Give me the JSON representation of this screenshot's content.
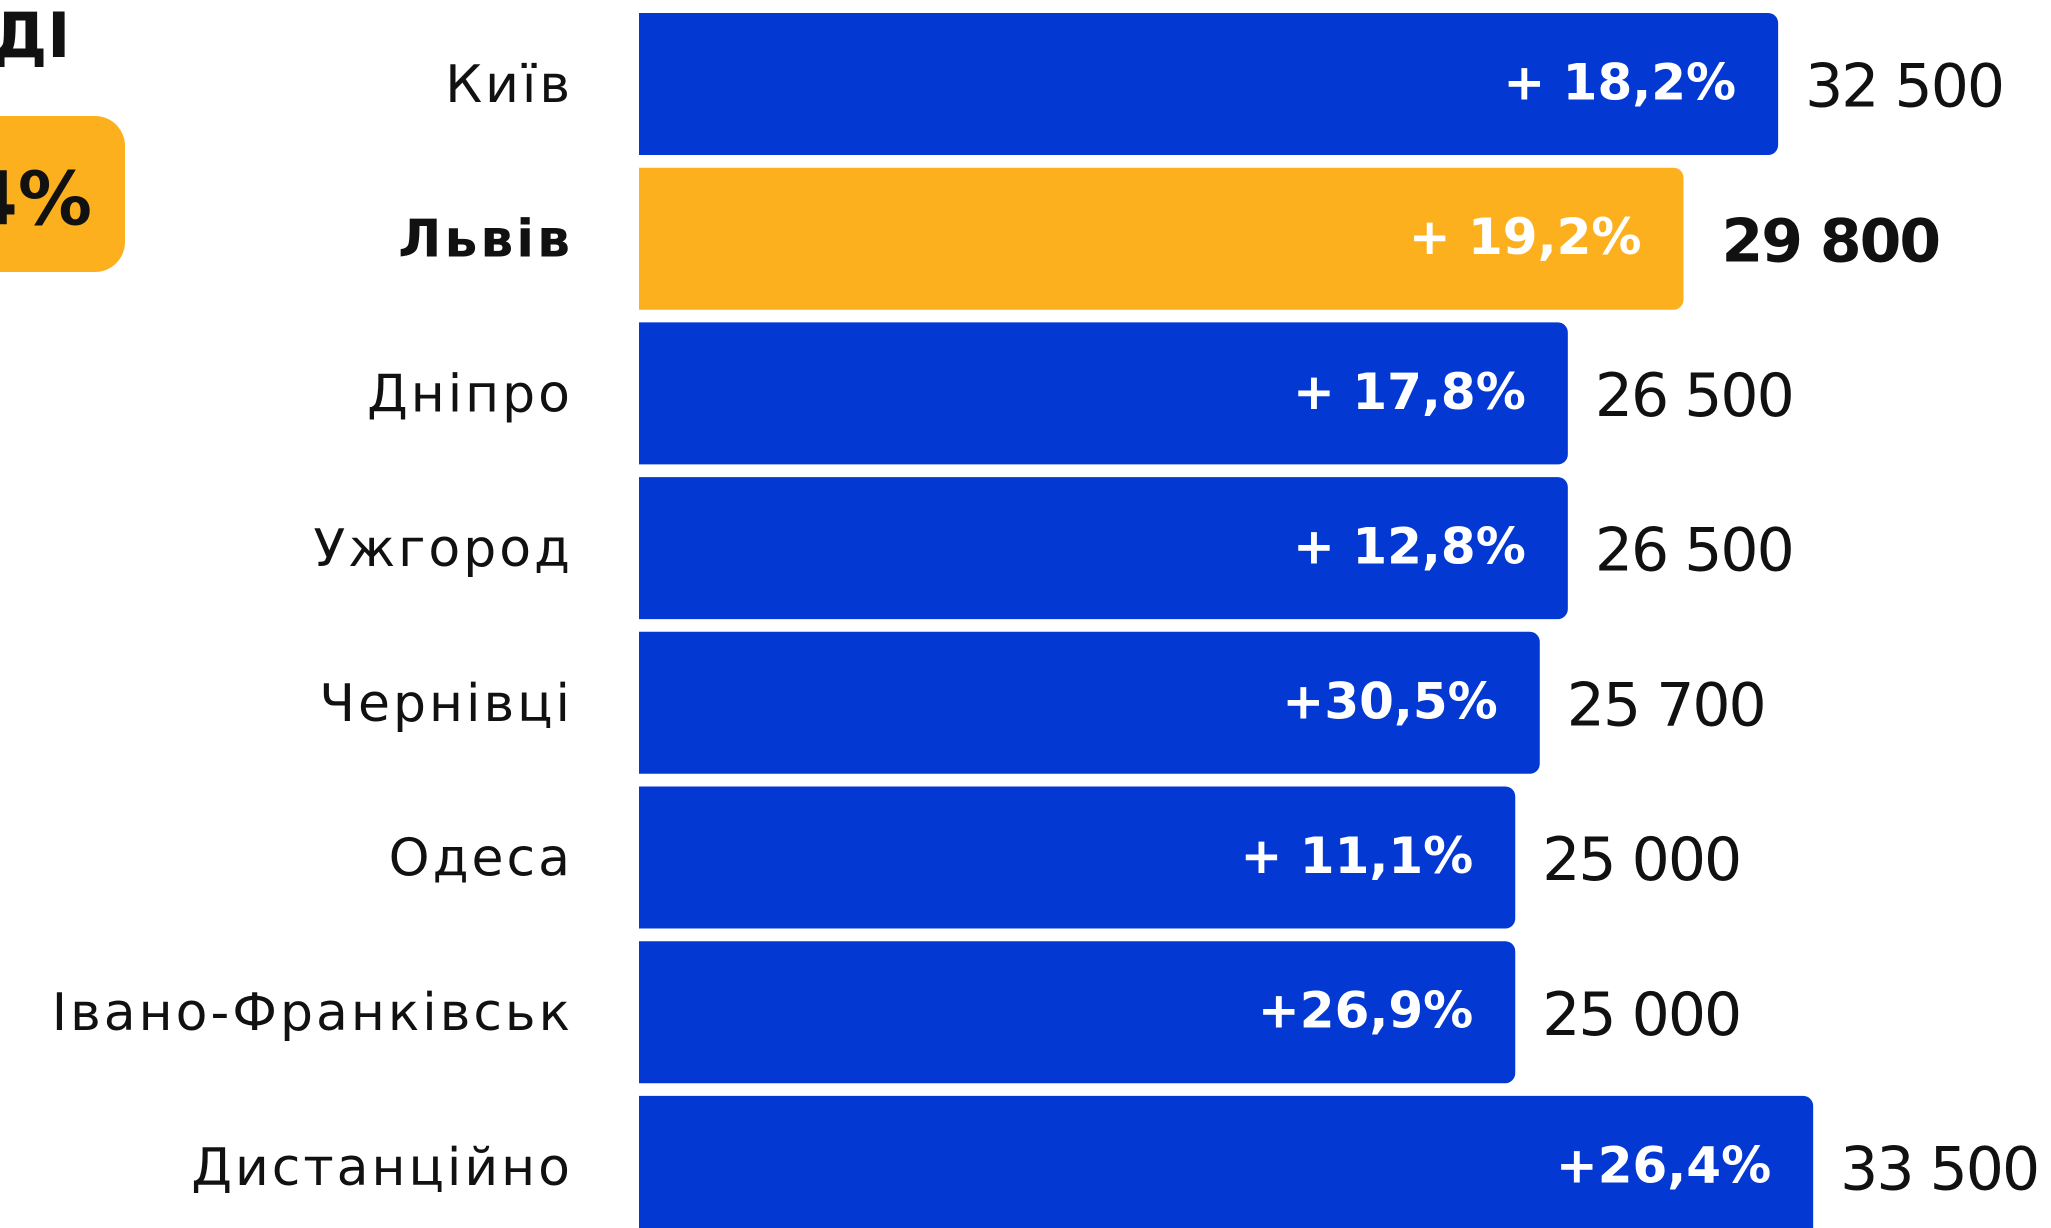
{
  "chart_data": {
    "type": "hbar",
    "header_fragment": "ДІ",
    "badge_fragment": "4%",
    "categories": [
      "Київ",
      "Львів",
      "Дніпро",
      "Ужгород",
      "Чернівці",
      "Одеса",
      "Івано-Франківськ",
      "Дистанційно"
    ],
    "values": [
      32500,
      29800,
      26500,
      26500,
      25700,
      25000,
      25000,
      33500
    ],
    "value_labels": [
      "32 500",
      "29 800",
      "26 500",
      "26 500",
      "25 700",
      "25 000",
      "25 000",
      "33 500"
    ],
    "bar_labels": [
      "+ 18,2%",
      "+ 19,2%",
      "+ 17,8%",
      "+ 12,8%",
      "+30,5%",
      "+ 11,1%",
      "+26,9%",
      "+26,4%"
    ],
    "color": "#0338d3",
    "highlight": 1,
    "highlight_color": "#fdb01e",
    "xlim": [
      0,
      40000
    ]
  }
}
